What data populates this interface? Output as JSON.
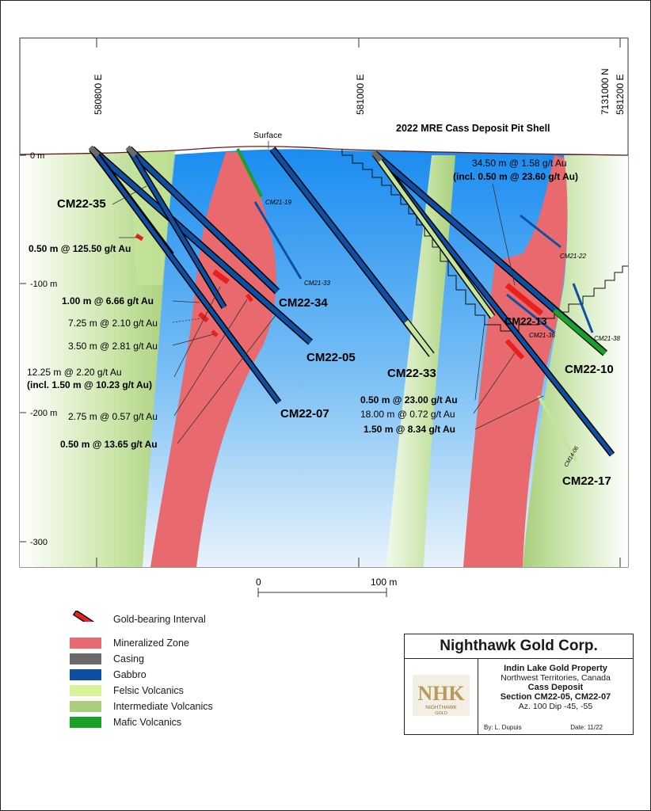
{
  "title": "2022 MRE Cass Deposit Pit Shell",
  "surface_label": "Surface",
  "eastings": [
    "580800 E",
    "581000 E",
    "581200 E"
  ],
  "northing": "7131000 N",
  "depth_labels": [
    "0 m",
    "-100 m",
    "-200 m",
    "-300"
  ],
  "scale": {
    "zero": "0",
    "end": "100 m"
  },
  "holes": [
    "CM22-35",
    "CM22-34",
    "CM22-05",
    "CM22-07",
    "CM22-33",
    "CM22-13",
    "CM22-10",
    "CM22-17"
  ],
  "minor_holes": [
    "CM21-19",
    "CM21-33",
    "CM21-22",
    "CM21-36",
    "CM21-38",
    "CM14-06"
  ],
  "intercepts_left": [
    {
      "text": "0.50 m @ 125.50 g/t Au",
      "bold": true
    },
    {
      "text": "1.00 m @ 6.66 g/t Au",
      "bold": true
    },
    {
      "text": "7.25 m @ 2.10 g/t Au",
      "bold": false
    },
    {
      "text": "3.50 m @ 2.81 g/t Au",
      "bold": false
    },
    {
      "text": "12.25 m @ 2.20 g/t Au",
      "bold": false
    },
    {
      "text": "(incl. 1.50 m @ 10.23 g/t Au)",
      "bold": true
    },
    {
      "text": "2.75 m @ 0.57 g/t Au",
      "bold": false
    },
    {
      "text": "0.50 m @ 13.65 g/t Au",
      "bold": true
    }
  ],
  "intercepts_right": [
    {
      "text": "34.50 m @ 1.58 g/t Au",
      "bold": false
    },
    {
      "text": "(incl. 0.50 m @ 23.60 g/t Au)",
      "bold": true
    },
    {
      "text": "0.50 m @ 23.00 g/t Au",
      "bold": true
    },
    {
      "text": "18.00 m @ 0.72 g/t Au",
      "bold": false
    },
    {
      "text": "1.50 m @ 8.34 g/t Au",
      "bold": true
    }
  ],
  "legend": [
    {
      "label": "Gold-bearing Interval",
      "color": "#e8201e",
      "icon": "gold-interval-icon"
    },
    {
      "label": "Mineralized Zone",
      "color": "#e8696e"
    },
    {
      "label": "Casing",
      "color": "#6a6a6a"
    },
    {
      "label": "Gabbro",
      "color": "#0f4fa3"
    },
    {
      "label": "Felsic Volcanics",
      "color": "#d9f29a"
    },
    {
      "label": "Intermediate Volcanics",
      "color": "#a9cf7a"
    },
    {
      "label": "Mafic Volcanics",
      "color": "#1aa128"
    }
  ],
  "title_block": {
    "company": "Nighthawk Gold Corp.",
    "logo_text": "NHK",
    "logo_sub1": "NIGHTHAWK",
    "logo_sub2": "GOLD",
    "property": "Indin Lake Gold Property",
    "location": "Northwest Territories, Canada",
    "deposit": "Cass Deposit",
    "section": "Section CM22-05, CM22-07",
    "orientation": "Az. 100  Dip -45, -55",
    "by": "By: L. Dupuis",
    "date": "Date: 11/22"
  },
  "colors": {
    "mineralized": "#e8696e",
    "gabbro": "#0f4fa3",
    "intermediate": "#a9cf7a",
    "felsic": "#d9f29a",
    "mafic": "#1aa128",
    "casing": "#6a6a6a",
    "gold": "#e8201e",
    "sky_blue": "#1f8ff0"
  }
}
